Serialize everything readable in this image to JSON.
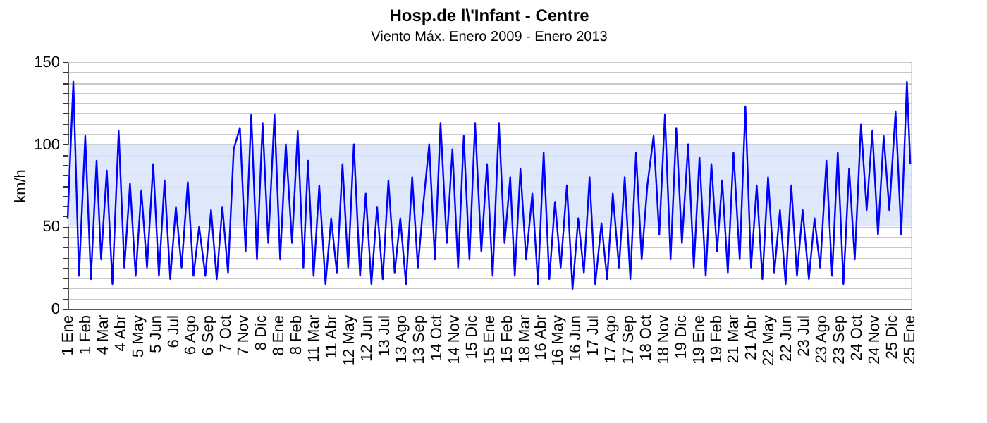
{
  "chart_data": {
    "type": "line",
    "title": "Hosp.de l\\'Infant - Centre",
    "subtitle": "Viento Máx. Enero 2009 - Enero 2013",
    "ylabel": "km/h",
    "x": [
      "2009-01-01",
      "2009-01-11",
      "2009-01-21",
      "2009-02-01",
      "2009-02-11",
      "2009-02-21",
      "2009-03-01",
      "2009-03-11",
      "2009-03-21",
      "2009-04-01",
      "2009-04-11",
      "2009-04-21",
      "2009-05-01",
      "2009-05-11",
      "2009-05-21",
      "2009-06-01",
      "2009-06-11",
      "2009-06-21",
      "2009-07-01",
      "2009-07-11",
      "2009-07-21",
      "2009-08-01",
      "2009-08-11",
      "2009-08-21",
      "2009-09-01",
      "2009-09-11",
      "2009-09-21",
      "2009-10-01",
      "2009-10-11",
      "2009-10-21",
      "2009-11-01",
      "2009-11-11",
      "2009-11-21",
      "2009-12-01",
      "2009-12-11",
      "2009-12-21",
      "2010-01-01",
      "2010-01-11",
      "2010-01-21",
      "2010-02-01",
      "2010-02-11",
      "2010-02-21",
      "2010-03-01",
      "2010-03-11",
      "2010-03-21",
      "2010-04-01",
      "2010-04-11",
      "2010-04-21",
      "2010-05-01",
      "2010-05-11",
      "2010-05-21",
      "2010-06-01",
      "2010-06-11",
      "2010-06-21",
      "2010-07-01",
      "2010-07-11",
      "2010-07-21",
      "2010-08-01",
      "2010-08-11",
      "2010-08-21",
      "2010-09-01",
      "2010-09-11",
      "2010-09-21",
      "2010-10-01",
      "2010-10-11",
      "2010-10-21",
      "2010-11-01",
      "2010-11-11",
      "2010-11-21",
      "2010-12-01",
      "2010-12-11",
      "2010-12-21",
      "2011-01-01",
      "2011-01-11",
      "2011-01-21",
      "2011-02-01",
      "2011-02-11",
      "2011-02-21",
      "2011-03-01",
      "2011-03-11",
      "2011-03-21",
      "2011-04-01",
      "2011-04-11",
      "2011-04-21",
      "2011-05-01",
      "2011-05-11",
      "2011-05-21",
      "2011-06-01",
      "2011-06-11",
      "2011-06-21",
      "2011-07-01",
      "2011-07-11",
      "2011-07-21",
      "2011-08-01",
      "2011-08-11",
      "2011-08-21",
      "2011-09-01",
      "2011-09-11",
      "2011-09-21",
      "2011-10-01",
      "2011-10-11",
      "2011-10-21",
      "2011-11-01",
      "2011-11-11",
      "2011-11-21",
      "2011-12-01",
      "2011-12-11",
      "2011-12-21",
      "2012-01-01",
      "2012-01-11",
      "2012-01-21",
      "2012-02-01",
      "2012-02-11",
      "2012-02-21",
      "2012-03-01",
      "2012-03-11",
      "2012-03-21",
      "2012-04-01",
      "2012-04-11",
      "2012-04-21",
      "2012-05-01",
      "2012-05-11",
      "2012-05-21",
      "2012-06-01",
      "2012-06-11",
      "2012-06-21",
      "2012-07-01",
      "2012-07-11",
      "2012-07-21",
      "2012-08-01",
      "2012-08-11",
      "2012-08-21",
      "2012-09-01",
      "2012-09-11",
      "2012-09-21",
      "2012-10-01",
      "2012-10-11",
      "2012-10-21",
      "2012-11-01",
      "2012-11-11",
      "2012-11-21",
      "2012-12-01",
      "2012-12-11",
      "2012-12-21",
      "2013-01-01",
      "2013-01-11",
      "2013-01-21",
      "2013-01-27"
    ],
    "series": [
      {
        "color": "#0000ff",
        "values": [
          55,
          138,
          20,
          105,
          18,
          90,
          30,
          84,
          15,
          108,
          25,
          76,
          20,
          72,
          25,
          88,
          20,
          78,
          18,
          62,
          25,
          77,
          20,
          50,
          20,
          60,
          18,
          62,
          22,
          97,
          110,
          35,
          118,
          30,
          113,
          40,
          118,
          30,
          100,
          40,
          108,
          25,
          90,
          20,
          75,
          15,
          55,
          22,
          88,
          25,
          100,
          20,
          70,
          15,
          62,
          18,
          78,
          22,
          55,
          15,
          80,
          25,
          65,
          100,
          30,
          113,
          40,
          97,
          25,
          105,
          30,
          113,
          35,
          88,
          20,
          113,
          40,
          80,
          20,
          85,
          30,
          70,
          15,
          95,
          18,
          65,
          25,
          75,
          12,
          55,
          22,
          80,
          15,
          52,
          18,
          70,
          25,
          80,
          18,
          95,
          30,
          75,
          105,
          45,
          118,
          30,
          110,
          40,
          100,
          25,
          92,
          20,
          88,
          35,
          78,
          22,
          95,
          30,
          123,
          25,
          75,
          18,
          80,
          22,
          60,
          15,
          75,
          20,
          60,
          18,
          55,
          25,
          90,
          20,
          95,
          15,
          85,
          30,
          112,
          60,
          108,
          45,
          105,
          60,
          120,
          45,
          138,
          88
        ]
      }
    ],
    "xlim": [
      "2009-01-01",
      "2013-01-28"
    ],
    "xticks": [
      {
        "value": "2009-01-01",
        "label": "1 Ene"
      },
      {
        "value": "2009-02-01",
        "label": "1 Feb"
      },
      {
        "value": "2009-03-04",
        "label": "4 Mar"
      },
      {
        "value": "2009-04-04",
        "label": "4 Abr"
      },
      {
        "value": "2009-05-05",
        "label": "5 May"
      },
      {
        "value": "2009-06-05",
        "label": "5 Jun"
      },
      {
        "value": "2009-07-06",
        "label": "6 Jul"
      },
      {
        "value": "2009-08-06",
        "label": "6 Ago"
      },
      {
        "value": "2009-09-06",
        "label": "6 Sep"
      },
      {
        "value": "2009-10-07",
        "label": "7 Oct"
      },
      {
        "value": "2009-11-07",
        "label": "7 Nov"
      },
      {
        "value": "2009-12-08",
        "label": "8 Dic"
      },
      {
        "value": "2010-01-08",
        "label": "8 Ene"
      },
      {
        "value": "2010-02-08",
        "label": "8 Feb"
      },
      {
        "value": "2010-03-11",
        "label": "11 Mar"
      },
      {
        "value": "2010-04-11",
        "label": "11 Abr"
      },
      {
        "value": "2010-05-12",
        "label": "12 May"
      },
      {
        "value": "2010-06-12",
        "label": "12 Jun"
      },
      {
        "value": "2010-07-13",
        "label": "13 Jul"
      },
      {
        "value": "2010-08-13",
        "label": "13 Ago"
      },
      {
        "value": "2010-09-13",
        "label": "13 Sep"
      },
      {
        "value": "2010-10-14",
        "label": "14 Oct"
      },
      {
        "value": "2010-11-14",
        "label": "14 Nov"
      },
      {
        "value": "2010-12-15",
        "label": "15 Dic"
      },
      {
        "value": "2011-01-15",
        "label": "15 Ene"
      },
      {
        "value": "2011-02-15",
        "label": "15 Feb"
      },
      {
        "value": "2011-03-18",
        "label": "18 Mar"
      },
      {
        "value": "2011-04-16",
        "label": "16 Abr"
      },
      {
        "value": "2011-05-16",
        "label": "16 May"
      },
      {
        "value": "2011-06-16",
        "label": "16 Jun"
      },
      {
        "value": "2011-07-17",
        "label": "17 Jul"
      },
      {
        "value": "2011-08-17",
        "label": "17 Ago"
      },
      {
        "value": "2011-09-17",
        "label": "17 Sep"
      },
      {
        "value": "2011-10-18",
        "label": "18 Oct"
      },
      {
        "value": "2011-11-18",
        "label": "18 Nov"
      },
      {
        "value": "2011-12-19",
        "label": "19 Dic"
      },
      {
        "value": "2012-01-19",
        "label": "19 Ene"
      },
      {
        "value": "2012-02-19",
        "label": "19 Feb"
      },
      {
        "value": "2012-03-21",
        "label": "21 Mar"
      },
      {
        "value": "2012-04-21",
        "label": "21 Abr"
      },
      {
        "value": "2012-05-22",
        "label": "22 May"
      },
      {
        "value": "2012-06-22",
        "label": "22 Jun"
      },
      {
        "value": "2012-07-23",
        "label": "23 Jul"
      },
      {
        "value": "2012-08-23",
        "label": "23 Ago"
      },
      {
        "value": "2012-09-23",
        "label": "23 Sep"
      },
      {
        "value": "2012-10-24",
        "label": "24 Oct"
      },
      {
        "value": "2012-11-24",
        "label": "24 Nov"
      },
      {
        "value": "2012-12-25",
        "label": "25 Dic"
      },
      {
        "value": "2013-01-25",
        "label": "25 Ene"
      }
    ],
    "ylim": [
      0,
      150
    ],
    "yticks": [
      0,
      {
        "value": 6.25,
        "label": null
      },
      {
        "value": 12.5,
        "label": null
      },
      {
        "value": 18.75,
        "label": null
      },
      {
        "value": 25,
        "label": null
      },
      {
        "value": 31.25,
        "label": null
      },
      {
        "value": 37.5,
        "label": null
      },
      {
        "value": 43.75,
        "label": null
      },
      50,
      {
        "value": 56.25,
        "label": null
      },
      {
        "value": 62.5,
        "label": null
      },
      {
        "value": 68.75,
        "label": null
      },
      {
        "value": 75,
        "label": null
      },
      {
        "value": 81.25,
        "label": null
      },
      {
        "value": 87.5,
        "label": null
      },
      {
        "value": 93.75,
        "label": null
      },
      100,
      {
        "value": 106.25,
        "label": null
      },
      {
        "value": 112.5,
        "label": null
      },
      {
        "value": 118.75,
        "label": null
      },
      {
        "value": 125,
        "label": null
      },
      {
        "value": 131.25,
        "label": null
      },
      {
        "value": 137.5,
        "label": null
      },
      {
        "value": 143.75,
        "label": null
      },
      150
    ],
    "bands": [
      {
        "axis": "y",
        "from": 50,
        "to": 100,
        "color": "#dde6fb"
      }
    ],
    "grid": "y",
    "line_style": "solid",
    "marker": "none"
  }
}
